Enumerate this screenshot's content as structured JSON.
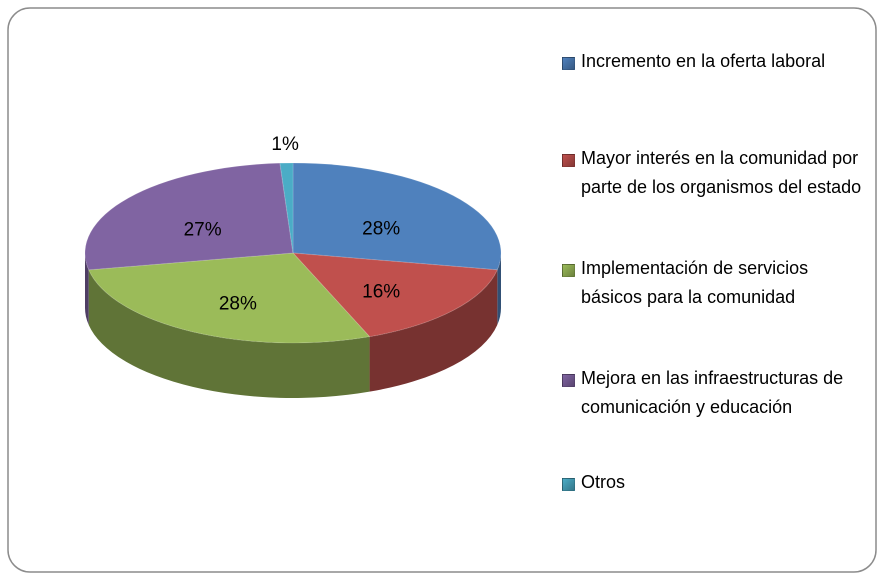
{
  "chart_data": {
    "type": "pie",
    "categories": [
      "Incremento en la oferta laboral",
      "Mayor interés en la comunidad por parte de los organismos del estado",
      "Implementación de servicios básicos para la comunidad",
      "Mejora en las infraestructuras de comunicación y educación",
      "Otros"
    ],
    "values": [
      28,
      16,
      28,
      27,
      1
    ],
    "value_labels": [
      "28%",
      "16%",
      "28%",
      "27%",
      "1%"
    ],
    "colors": [
      "#4f81bd",
      "#c0504d",
      "#9bbb59",
      "#8064a2",
      "#4bacc6"
    ],
    "legend": "right"
  }
}
